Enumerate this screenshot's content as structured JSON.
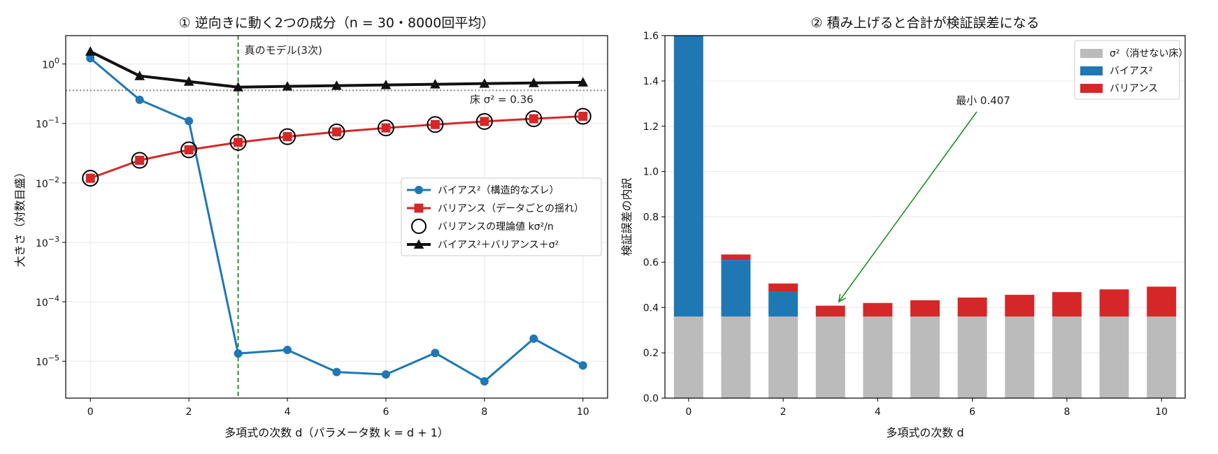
{
  "chart_data": [
    {
      "type": "line",
      "title": "① 逆向きに動く2つの成分（n = 30・8000回平均）",
      "xlabel": "多項式の次数 d（パラメータ数 k = d + 1）",
      "ylabel": "大きさ（対数目盛）",
      "yscale": "log",
      "xlim": [
        -0.5,
        10.5
      ],
      "ylim": [
        2.4e-06,
        3.0
      ],
      "grid": true,
      "legend_position": "center-right",
      "x_ticks": [
        "0",
        "2",
        "4",
        "6",
        "8",
        "10"
      ],
      "y_ticks": [
        "10^0",
        "10^-1",
        "10^-2",
        "10^-3",
        "10^-4",
        "10^-5"
      ],
      "x": [
        0,
        1,
        2,
        3,
        4,
        5,
        6,
        7,
        8,
        9,
        10
      ],
      "series": [
        {
          "name": "バイアス²（構造的なズレ）",
          "color": "#1f77b4",
          "marker": "circle",
          "values": [
            1.25,
            0.25,
            0.11,
            1.35e-05,
            1.55e-05,
            6.6e-06,
            6e-06,
            1.38e-05,
            4.6e-06,
            2.4e-05,
            8.5e-06
          ]
        },
        {
          "name": "バリアンス（データごとの揺れ）",
          "color": "#d62728",
          "marker": "square",
          "values": [
            0.012,
            0.024,
            0.036,
            0.048,
            0.06,
            0.072,
            0.084,
            0.096,
            0.108,
            0.12,
            0.132
          ]
        },
        {
          "name": "バリアンスの理論値 kσ²/n",
          "color": "#000000",
          "marker": "open-circle",
          "values": [
            0.012,
            0.024,
            0.036,
            0.048,
            0.06,
            0.072,
            0.084,
            0.096,
            0.108,
            0.12,
            0.132
          ]
        },
        {
          "name": "バイアス²＋バリアンス＋σ²",
          "color": "#111111",
          "marker": "triangle",
          "values": [
            1.62,
            0.63,
            0.506,
            0.408,
            0.42,
            0.432,
            0.444,
            0.456,
            0.468,
            0.48,
            0.492
          ]
        }
      ],
      "annotations": [
        {
          "text": "真のモデル(3次)",
          "x": 3,
          "type": "vline",
          "color": "#138a13"
        },
        {
          "text": "床 σ² = 0.36",
          "y": 0.36,
          "type": "hline",
          "color": "#777777"
        }
      ]
    },
    {
      "type": "bar",
      "stacked": true,
      "title": "② 積み上げると合計が検証誤差になる",
      "xlabel": "多項式の次数 d",
      "ylabel": "検証誤差の内訳",
      "xlim": [
        -0.5,
        10.5
      ],
      "ylim": [
        0,
        1.6
      ],
      "grid": true,
      "legend_position": "top-right",
      "x_ticks": [
        "0",
        "2",
        "4",
        "6",
        "8",
        "10"
      ],
      "y_ticks": [
        "0.0",
        "0.2",
        "0.4",
        "0.6",
        "0.8",
        "1.0",
        "1.2",
        "1.4",
        "1.6"
      ],
      "categories": [
        0,
        1,
        2,
        3,
        4,
        5,
        6,
        7,
        8,
        9,
        10
      ],
      "series": [
        {
          "name": "σ²（消せない床）",
          "color": "#bbbbbb",
          "values": [
            0.36,
            0.36,
            0.36,
            0.36,
            0.36,
            0.36,
            0.36,
            0.36,
            0.36,
            0.36,
            0.36
          ]
        },
        {
          "name": "バイアス²",
          "color": "#1f77b4",
          "values": [
            1.25,
            0.25,
            0.11,
            0.0,
            0.0,
            0.0,
            0.0,
            0.0,
            0.0,
            0.0,
            0.0
          ]
        },
        {
          "name": "バリアンス",
          "color": "#d62728",
          "values": [
            0.012,
            0.024,
            0.036,
            0.048,
            0.06,
            0.072,
            0.084,
            0.096,
            0.108,
            0.12,
            0.132
          ]
        }
      ],
      "annotations": [
        {
          "text": "最小 0.407",
          "x": 3,
          "y": 0.407,
          "color": "#138a13"
        }
      ]
    }
  ]
}
